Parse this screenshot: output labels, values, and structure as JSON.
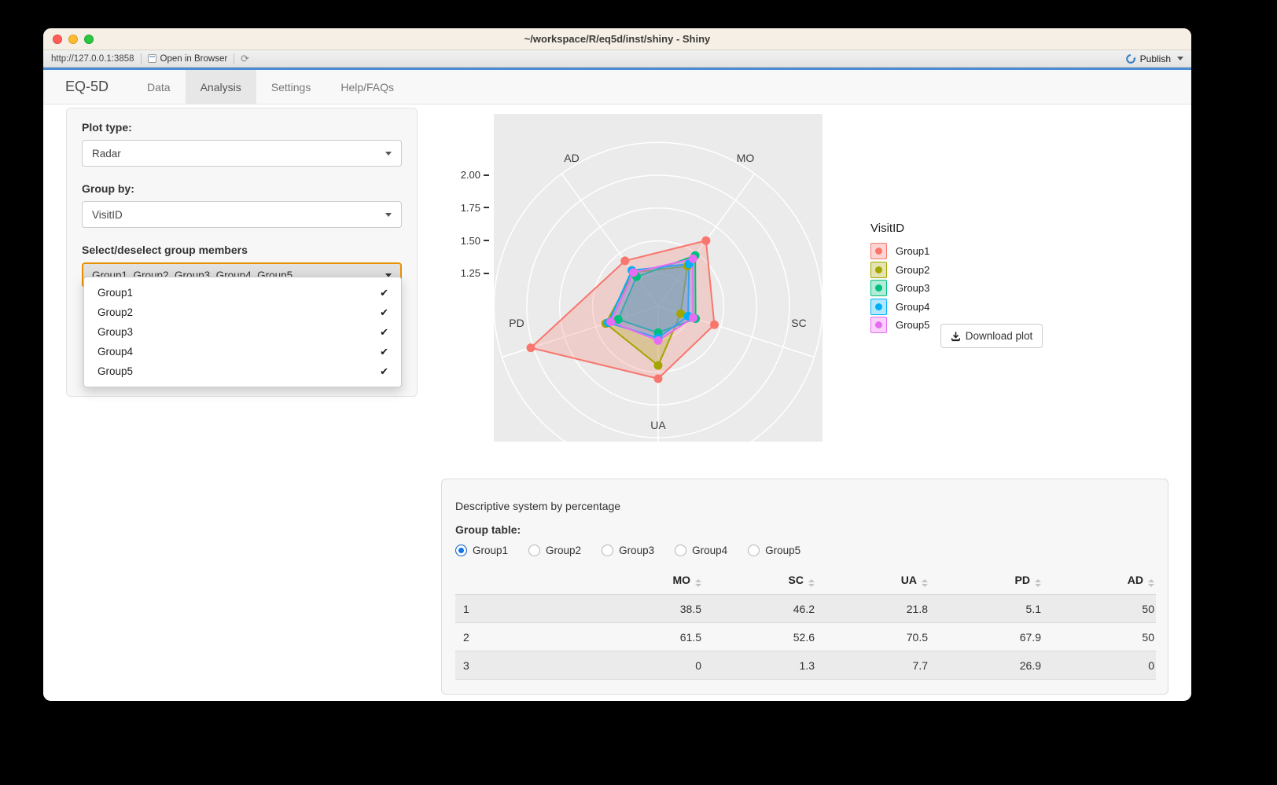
{
  "window": {
    "title": "~/workspace/R/eq5d/inst/shiny - Shiny"
  },
  "browser_bar": {
    "url": "http://127.0.0.1:3858",
    "open_in_browser": "Open in Browser",
    "publish": "Publish"
  },
  "navbar": {
    "brand": "EQ-5D",
    "tabs": [
      {
        "label": "Data",
        "active": false
      },
      {
        "label": "Analysis",
        "active": true
      },
      {
        "label": "Settings",
        "active": false
      },
      {
        "label": "Help/FAQs",
        "active": false
      }
    ]
  },
  "sidebar": {
    "plot_type_label": "Plot type:",
    "plot_type_value": "Radar",
    "group_by_label": "Group by:",
    "group_by_value": "VisitID",
    "members_label": "Select/deselect group members",
    "members_value": "Group1, Group2, Group3, Group4, Group5",
    "members_options": [
      {
        "label": "Group1",
        "checked": true
      },
      {
        "label": "Group2",
        "checked": true
      },
      {
        "label": "Group3",
        "checked": true
      },
      {
        "label": "Group4",
        "checked": true
      },
      {
        "label": "Group5",
        "checked": true
      }
    ]
  },
  "chart_data": {
    "type": "radar",
    "axes": [
      "MO",
      "SC",
      "UA",
      "PD",
      "AD"
    ],
    "radial_ticks": [
      1.25,
      1.5,
      1.75,
      2.0
    ],
    "tick_labels": [
      "2.00",
      "1.75",
      "1.50",
      "1.25"
    ],
    "rmin": 1.0,
    "rmax": 2.25,
    "legend_title": "VisitID",
    "legend_position": "right",
    "grid": true,
    "series": [
      {
        "name": "Group1",
        "color": "#F8766D",
        "values": [
          1.62,
          1.45,
          1.55,
          2.02,
          1.43
        ]
      },
      {
        "name": "Group2",
        "color": "#A3A500",
        "values": [
          1.38,
          1.18,
          1.45,
          1.42,
          1.32
        ]
      },
      {
        "name": "Group3",
        "color": "#00BF7D",
        "values": [
          1.48,
          1.3,
          1.2,
          1.32,
          1.28
        ]
      },
      {
        "name": "Group4",
        "color": "#00B0F6",
        "values": [
          1.4,
          1.24,
          1.24,
          1.4,
          1.34
        ]
      },
      {
        "name": "Group5",
        "color": "#E76BF3",
        "values": [
          1.45,
          1.28,
          1.26,
          1.38,
          1.32
        ]
      }
    ]
  },
  "plot_actions": {
    "download_label": "Download plot"
  },
  "table_panel": {
    "title": "Descriptive system by percentage",
    "group_table_label": "Group table:",
    "radio_options": [
      "Group1",
      "Group2",
      "Group3",
      "Group4",
      "Group5"
    ],
    "radio_selected": "Group1",
    "table": {
      "columns": [
        "MO",
        "SC",
        "UA",
        "PD",
        "AD"
      ],
      "row_header": [
        "1",
        "2",
        "3"
      ],
      "rows": [
        [
          "38.5",
          "46.2",
          "21.8",
          "5.1",
          "50"
        ],
        [
          "61.5",
          "52.6",
          "70.5",
          "67.9",
          "50"
        ],
        [
          "0",
          "1.3",
          "7.7",
          "26.9",
          "0"
        ]
      ]
    }
  }
}
